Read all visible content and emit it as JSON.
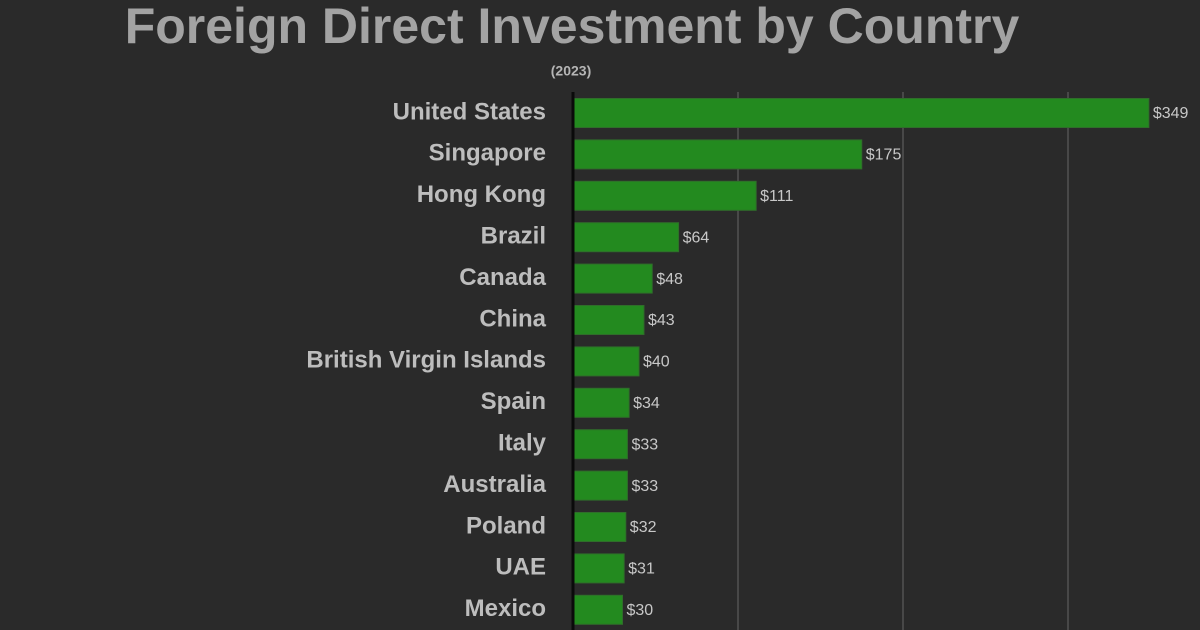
{
  "chart_data": {
    "type": "bar",
    "orientation": "horizontal",
    "title": "Foreign Direct Investment by Country",
    "subtitle": "(2023)",
    "categories": [
      "United States",
      "Singapore",
      "Hong Kong",
      "Brazil",
      "Canada",
      "China",
      "British Virgin Islands",
      "Spain",
      "Italy",
      "Australia",
      "Poland",
      "UAE",
      "Mexico"
    ],
    "values": [
      349,
      175,
      111,
      64,
      48,
      43,
      40,
      34,
      33,
      33,
      32,
      31,
      30
    ],
    "value_labels": [
      "$349",
      "$175",
      "$111",
      "$64",
      "$48",
      "$43",
      "$40",
      "$34",
      "$33",
      "$33",
      "$32",
      "$31",
      "$30"
    ],
    "color": "#238a1f",
    "xlim": [
      0,
      380
    ],
    "xticks": [
      0,
      100,
      200,
      300
    ],
    "grid": true
  }
}
